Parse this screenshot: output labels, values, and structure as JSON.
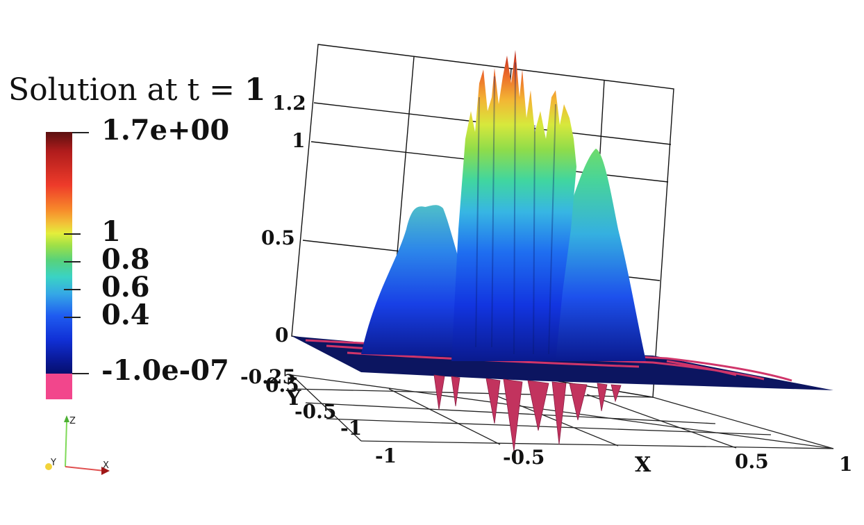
{
  "legend": {
    "title_prefix": "Solution at t =",
    "title_value": "1",
    "max_label": "1.7e+00",
    "ticks": [
      "1",
      "0.8",
      "0.6",
      "0.4"
    ],
    "min_label": "-1.0e-07",
    "below_range_color": "#f2468c"
  },
  "axes": {
    "z_ticks": [
      "1.2",
      "1",
      "0.5",
      "0"
    ],
    "y_label": "Y",
    "y_ticks": [
      "-0.25",
      "-0.5",
      "-1"
    ],
    "y_tick_partial": "0.5",
    "x_label": "X",
    "x_ticks": [
      "-1",
      "-0.5",
      "0.5",
      "1"
    ]
  },
  "orientation": {
    "z": "Z",
    "y": "Y",
    "x": "X"
  },
  "colors": {
    "surface_high": "#c0281c",
    "surface_mid": "#3ad3c4",
    "surface_low": "#0a1a9a",
    "negative": "#c2335e"
  }
}
